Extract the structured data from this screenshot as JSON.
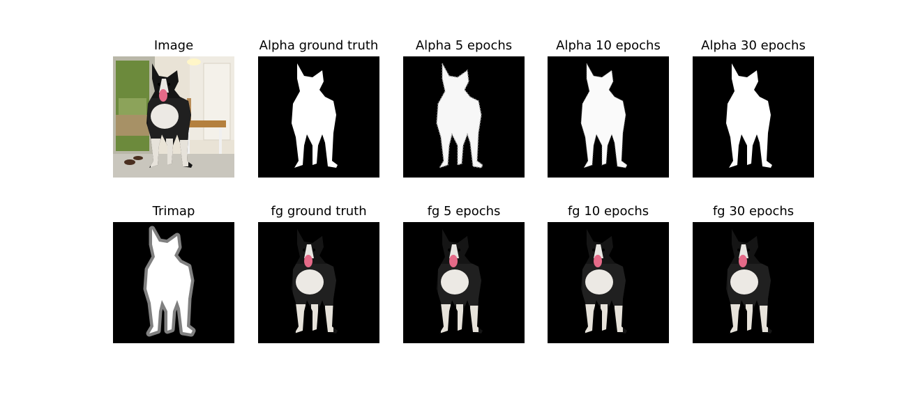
{
  "figure": {
    "row1": {
      "image_title": "Image",
      "alpha_gt_title": "Alpha ground truth",
      "alpha5_title": "Alpha 5 epochs",
      "alpha10_title": "Alpha 10 epochs",
      "alpha30_title": "Alpha 30 epochs"
    },
    "row2": {
      "trimap_title": "Trimap",
      "fg_gt_title": "fg ground truth",
      "fg5_title": "fg 5 epochs",
      "fg10_title": "fg 10 epochs",
      "fg30_title": "fg 30 epochs"
    }
  }
}
